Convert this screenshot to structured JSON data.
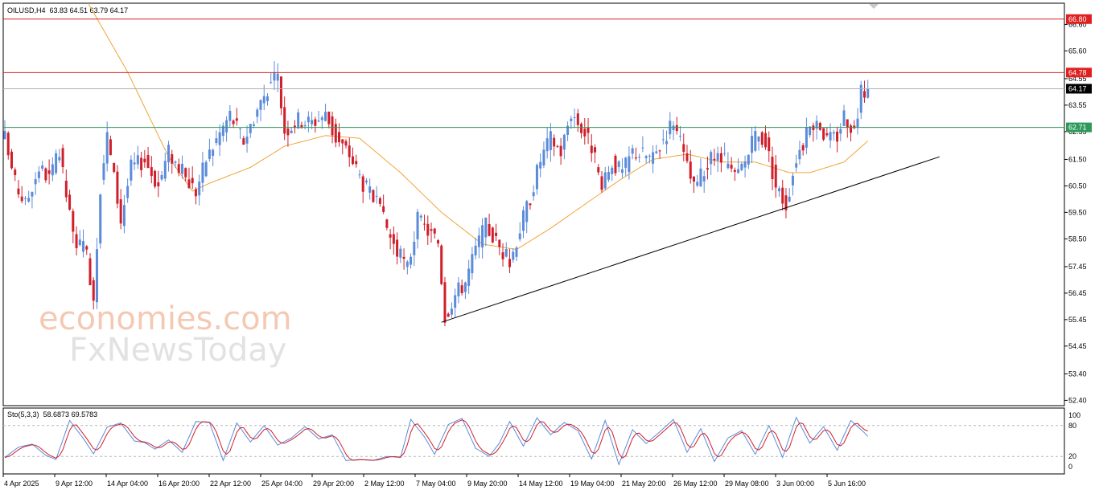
{
  "header": {
    "symbol_timeframe": "OILUSD,H4",
    "ohlc": "63.83 64.51 63.79 64.17"
  },
  "watermark": {
    "line1": "economies.com",
    "line2": "FxNewsToday"
  },
  "colors": {
    "bull": "#5b8bd9",
    "bear": "#d01f2a",
    "ma": "#f0a53a",
    "resistance": "#e02020",
    "support": "#2e9a5a",
    "current": "#b0b0b0",
    "trendline": "#000000",
    "stoch_main": "#5b8bd9",
    "stoch_signal": "#d01f2a"
  },
  "chart_data": [
    {
      "type": "candlestick",
      "title": "OILUSD,H4",
      "ohlc_last": {
        "open": 63.83,
        "high": 64.51,
        "low": 63.79,
        "close": 64.17
      },
      "x_tick_labels": [
        "4 Apr 2025",
        "9 Apr 12:00",
        "14 Apr 04:00",
        "16 Apr 20:00",
        "22 Apr 12:00",
        "25 Apr 04:00",
        "29 Apr 20:00",
        "2 May 12:00",
        "7 May 04:00",
        "9 May 20:00",
        "14 May 12:00",
        "19 May 04:00",
        "21 May 20:00",
        "26 May 12:00",
        "29 May 08:00",
        "3 Jun 00:00",
        "5 Jun 16:00"
      ],
      "y_tick_labels": [
        "66.60",
        "65.60",
        "64.55",
        "63.55",
        "62.55",
        "61.50",
        "60.50",
        "59.50",
        "58.50",
        "57.45",
        "56.45",
        "55.45",
        "54.45",
        "53.40",
        "52.40"
      ],
      "ylim": [
        52.2,
        67.4
      ],
      "candle_count": 254,
      "anchors": [
        [
          0,
          62.3
        ],
        [
          3,
          60.6
        ],
        [
          6,
          59.8
        ],
        [
          10,
          61.2
        ],
        [
          13,
          60.8
        ],
        [
          16,
          61.7
        ],
        [
          20,
          58.6
        ],
        [
          24,
          57.9
        ],
        [
          26,
          56.3
        ],
        [
          28,
          60.5
        ],
        [
          30,
          62.4
        ],
        [
          34,
          59.2
        ],
        [
          37,
          61.2
        ],
        [
          41,
          61.5
        ],
        [
          45,
          60.5
        ],
        [
          48,
          61.8
        ],
        [
          52,
          61.0
        ],
        [
          56,
          60.3
        ],
        [
          59,
          61.5
        ],
        [
          63,
          62.5
        ],
        [
          66,
          63.2
        ],
        [
          70,
          62.2
        ],
        [
          74,
          63.4
        ],
        [
          77,
          64.2
        ],
        [
          80,
          64.6
        ],
        [
          82,
          62.6
        ],
        [
          86,
          63.0
        ],
        [
          90,
          62.9
        ],
        [
          94,
          63.2
        ],
        [
          97,
          62.3
        ],
        [
          101,
          61.7
        ],
        [
          105,
          60.6
        ],
        [
          109,
          59.8
        ],
        [
          112,
          58.9
        ],
        [
          115,
          58.0
        ],
        [
          118,
          57.4
        ],
        [
          121,
          59.2
        ],
        [
          124,
          58.8
        ],
        [
          127,
          58.4
        ],
        [
          129,
          55.6
        ],
        [
          132,
          56.4
        ],
        [
          135,
          56.9
        ],
        [
          138,
          58.1
        ],
        [
          141,
          59.0
        ],
        [
          144,
          58.4
        ],
        [
          148,
          57.6
        ],
        [
          151,
          58.9
        ],
        [
          154,
          60.1
        ],
        [
          157,
          61.5
        ],
        [
          160,
          62.3
        ],
        [
          163,
          61.8
        ],
        [
          166,
          63.3
        ],
        [
          169,
          62.7
        ],
        [
          172,
          62.0
        ],
        [
          175,
          60.3
        ],
        [
          178,
          61.4
        ],
        [
          181,
          61.0
        ],
        [
          184,
          61.8
        ],
        [
          187,
          61.7
        ],
        [
          190,
          61.5
        ],
        [
          193,
          62.3
        ],
        [
          196,
          63.0
        ],
        [
          199,
          61.6
        ],
        [
          202,
          60.4
        ],
        [
          205,
          61.1
        ],
        [
          208,
          61.6
        ],
        [
          211,
          61.4
        ],
        [
          214,
          60.8
        ],
        [
          217,
          61.4
        ],
        [
          220,
          62.4
        ],
        [
          223,
          62.2
        ],
        [
          226,
          60.5
        ],
        [
          229,
          59.8
        ],
        [
          232,
          61.6
        ],
        [
          235,
          62.4
        ],
        [
          238,
          63.1
        ],
        [
          241,
          62.2
        ],
        [
          244,
          62.4
        ],
        [
          246,
          63.2
        ],
        [
          249,
          62.6
        ],
        [
          251,
          64.0
        ],
        [
          253,
          64.17
        ]
      ],
      "overlays": {
        "moving_average_anchors": [
          [
            0,
            73.5
          ],
          [
            12,
            70.5
          ],
          [
            24,
            67.5
          ],
          [
            36,
            64.8
          ],
          [
            48,
            61.6
          ],
          [
            55,
            60.3
          ],
          [
            60,
            60.6
          ],
          [
            72,
            61.2
          ],
          [
            82,
            62.0
          ],
          [
            94,
            62.4
          ],
          [
            104,
            62.3
          ],
          [
            116,
            61.0
          ],
          [
            128,
            59.5
          ],
          [
            140,
            58.3
          ],
          [
            150,
            58.1
          ],
          [
            160,
            58.9
          ],
          [
            170,
            59.8
          ],
          [
            180,
            60.7
          ],
          [
            190,
            61.5
          ],
          [
            200,
            61.7
          ],
          [
            210,
            61.4
          ],
          [
            220,
            61.4
          ],
          [
            230,
            61.0
          ],
          [
            236,
            61.0
          ],
          [
            246,
            61.4
          ],
          [
            253,
            62.2
          ]
        ],
        "resistance_lines": [
          66.8,
          64.78
        ],
        "support_line": 62.71,
        "current_price_line": 64.17,
        "trendline": {
          "start": [
            128,
            55.35
          ],
          "end": [
            274,
            61.6
          ]
        }
      },
      "price_badges": [
        "66.80",
        "64.78",
        "64.17",
        "62.71"
      ]
    },
    {
      "type": "line",
      "title": "Sto(5,3,3) 58.6873 69.5783",
      "name_params": "Sto(5,3,3)",
      "values_text": "58.6873 69.5783",
      "ylim": [
        0,
        100
      ],
      "levels": [
        20,
        80
      ],
      "y_tick_labels": [
        "100",
        "80",
        "20",
        "0"
      ],
      "series": [
        {
          "name": "main",
          "value": 58.6873
        },
        {
          "name": "signal",
          "value": 69.5783
        }
      ],
      "anchors": [
        [
          0,
          18
        ],
        [
          4,
          38
        ],
        [
          8,
          44
        ],
        [
          12,
          22
        ],
        [
          15,
          14
        ],
        [
          19,
          90
        ],
        [
          23,
          55
        ],
        [
          26,
          25
        ],
        [
          30,
          77
        ],
        [
          34,
          85
        ],
        [
          38,
          50
        ],
        [
          41,
          47
        ],
        [
          44,
          34
        ],
        [
          48,
          52
        ],
        [
          52,
          28
        ],
        [
          56,
          88
        ],
        [
          60,
          86
        ],
        [
          64,
          12
        ],
        [
          68,
          85
        ],
        [
          72,
          48
        ],
        [
          76,
          80
        ],
        [
          80,
          42
        ],
        [
          84,
          56
        ],
        [
          88,
          78
        ],
        [
          92,
          54
        ],
        [
          96,
          62
        ],
        [
          100,
          12
        ],
        [
          104,
          14
        ],
        [
          108,
          12
        ],
        [
          112,
          20
        ],
        [
          116,
          18
        ],
        [
          119,
          92
        ],
        [
          123,
          58
        ],
        [
          126,
          24
        ],
        [
          130,
          82
        ],
        [
          134,
          94
        ],
        [
          138,
          36
        ],
        [
          142,
          20
        ],
        [
          145,
          46
        ],
        [
          148,
          88
        ],
        [
          152,
          40
        ],
        [
          156,
          95
        ],
        [
          160,
          62
        ],
        [
          164,
          86
        ],
        [
          168,
          70
        ],
        [
          172,
          15
        ],
        [
          176,
          90
        ],
        [
          180,
          4
        ],
        [
          184,
          72
        ],
        [
          188,
          45
        ],
        [
          192,
          68
        ],
        [
          196,
          92
        ],
        [
          200,
          28
        ],
        [
          204,
          74
        ],
        [
          208,
          10
        ],
        [
          212,
          56
        ],
        [
          216,
          70
        ],
        [
          220,
          24
        ],
        [
          224,
          80
        ],
        [
          228,
          18
        ],
        [
          232,
          96
        ],
        [
          236,
          46
        ],
        [
          240,
          78
        ],
        [
          244,
          32
        ],
        [
          248,
          90
        ],
        [
          253,
          60
        ]
      ]
    }
  ]
}
